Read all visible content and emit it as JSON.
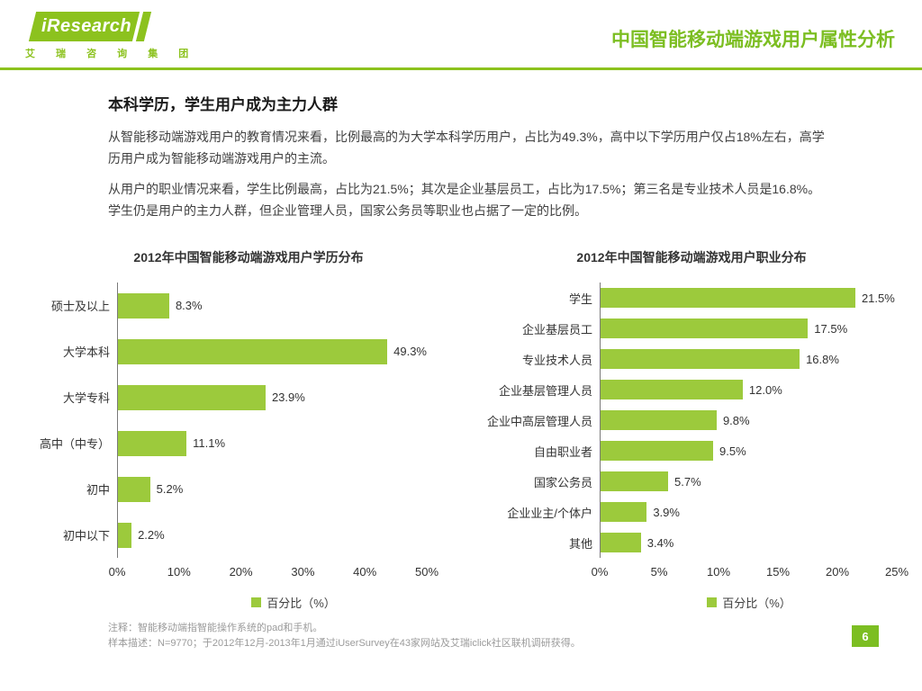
{
  "header": {
    "logo_text": "iResearch",
    "logo_subtext": "艾 瑞 咨 询 集 团",
    "title": "中国智能移动端游戏用户属性分析"
  },
  "article": {
    "heading": "本科学历，学生用户成为主力人群",
    "paragraphs": [
      "从智能移动端游戏用户的教育情况来看，比例最高的为大学本科学历用户，占比为49.3%，高中以下学历用户仅占18%左右，高学历用户成为智能移动端游戏用户的主流。",
      "从用户的职业情况来看，学生比例最高，占比为21.5%；其次是企业基层员工，占比为17.5%；第三名是专业技术人员是16.8%。学生仍是用户的主力人群，但企业管理人员，国家公务员等职业也占据了一定的比例。"
    ]
  },
  "chart_data": [
    {
      "type": "bar",
      "orientation": "horizontal",
      "title": "2012年中国智能移动端游戏用户学历分布",
      "categories": [
        "硕士及以上",
        "大学本科",
        "大学专科",
        "高中（中专）",
        "初中",
        "初中以下"
      ],
      "values": [
        8.3,
        49.3,
        23.9,
        11.1,
        5.2,
        2.2
      ],
      "value_labels": [
        "8.3%",
        "49.3%",
        "23.9%",
        "11.1%",
        "5.2%",
        "2.2%"
      ],
      "xlim": [
        0,
        50
      ],
      "x_ticks": [
        "0%",
        "10%",
        "20%",
        "30%",
        "40%",
        "50%"
      ],
      "legend": "百分比（%）",
      "grid": false,
      "legend_position": "bottom"
    },
    {
      "type": "bar",
      "orientation": "horizontal",
      "title": "2012年中国智能移动端游戏用户职业分布",
      "categories": [
        "学生",
        "企业基层员工",
        "专业技术人员",
        "企业基层管理人员",
        "企业中高层管理人员",
        "自由职业者",
        "国家公务员",
        "企业业主/个体户",
        "其他"
      ],
      "values": [
        21.5,
        17.5,
        16.8,
        12.0,
        9.8,
        9.5,
        5.7,
        3.9,
        3.4
      ],
      "value_labels": [
        "21.5%",
        "17.5%",
        "16.8%",
        "12.0%",
        "9.8%",
        "9.5%",
        "5.7%",
        "3.9%",
        "3.4%"
      ],
      "xlim": [
        0,
        25
      ],
      "x_ticks": [
        "0%",
        "5%",
        "10%",
        "15%",
        "20%",
        "25%"
      ],
      "legend": "百分比（%）",
      "grid": false,
      "legend_position": "bottom"
    }
  ],
  "footer": {
    "note1": "注释：智能移动端指智能操作系统的pad和手机。",
    "note2": "样本描述：N=9770；于2012年12月-2013年1月通过iUserSurvey在43家网站及艾瑞iclick社区联机调研获得。",
    "page_number": "6"
  },
  "colors": {
    "accent": "#7cbe22",
    "bar": "#9cca3c",
    "logo": "#8cc21e"
  }
}
